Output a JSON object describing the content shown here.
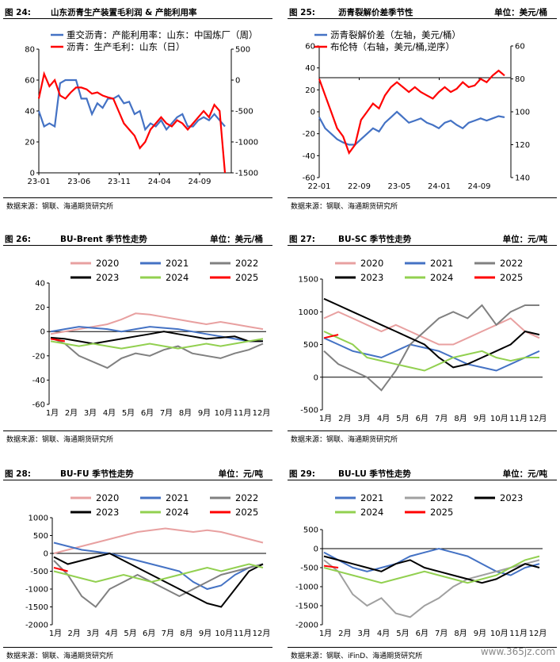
{
  "watermark": "www.365jz.com",
  "panels": [
    {
      "fig": "图 24:",
      "title": "山东沥青生产装置毛利润 & 产能利用率",
      "unit": "",
      "source": "数据来源：钢联、海通期货研究所"
    },
    {
      "fig": "图 25:",
      "title": "沥青裂解价差季节性",
      "unit": "单位：美元/桶",
      "source": "数据来源：钢联、海通期货研究所"
    },
    {
      "fig": "图 26:",
      "title": "BU-Brent 季节性走势",
      "unit": "单位：美元/桶",
      "source": "数据来源：钢联、海通期货研究所"
    },
    {
      "fig": "图 27:",
      "title": "BU-SC 季节性走势",
      "unit": "单位：元/吨",
      "source": "数据来源：钢联、海通期货研究所"
    },
    {
      "fig": "图 28:",
      "title": "BU-FU 季节性走势",
      "unit": "单位：元/吨",
      "source": "数据来源：钢联、海通期货研究所"
    },
    {
      "fig": "图 29:",
      "title": "BU-LU 季节性走势",
      "unit": "单位：元/吨",
      "source": "数据来源：钢联、iFinD、海通期货研究所"
    }
  ],
  "chart_data": [
    {
      "type": "line",
      "dual_axis": true,
      "x_tick_labels": [
        "23-01",
        "23-06",
        "23-11",
        "24-04",
        "24-09"
      ],
      "y_left_ticks": [
        0,
        20,
        40,
        60,
        80
      ],
      "y_right_ticks": [
        500,
        0,
        -500,
        -1000,
        -1500
      ],
      "series": [
        {
          "name": "重交沥青：产能利用率：山东：中国炼厂（周）",
          "axis": "left",
          "color": "#4472C4",
          "values": [
            40,
            30,
            32,
            30,
            58,
            60,
            60,
            60,
            48,
            48,
            38,
            45,
            42,
            48,
            48,
            50,
            45,
            46,
            38,
            40,
            28,
            32,
            30,
            34,
            28,
            32,
            36,
            38,
            30,
            30,
            34,
            36,
            34,
            38,
            34,
            30
          ]
        },
        {
          "name": "沥青：生产毛利：山东（日）",
          "axis": "right",
          "color": "#FF0000",
          "values": [
            -300,
            100,
            -100,
            0,
            -250,
            -300,
            -200,
            -120,
            -120,
            -150,
            -220,
            -200,
            -250,
            -280,
            -300,
            -500,
            -700,
            -800,
            -900,
            -1100,
            -1000,
            -800,
            -700,
            -600,
            -700,
            -750,
            -650,
            -700,
            -800,
            -700,
            -600,
            -500,
            -600,
            -400,
            -500,
            -1500
          ]
        }
      ]
    },
    {
      "type": "line",
      "dual_axis": true,
      "x_tick_labels": [
        "22-01",
        "22-09",
        "23-05",
        "24-01",
        "24-09"
      ],
      "y_left_ticks": [
        60,
        40,
        20,
        0,
        -20,
        -40,
        -60
      ],
      "y_right_ticks": [
        60,
        80,
        100,
        120,
        140
      ],
      "series": [
        {
          "name": "沥青裂解价差（左轴，美元/桶）",
          "axis": "left",
          "color": "#4472C4",
          "values": [
            -5,
            -15,
            -20,
            -25,
            -28,
            -30,
            -30,
            -25,
            -20,
            -15,
            -18,
            -10,
            -5,
            0,
            -5,
            -10,
            -8,
            -6,
            -10,
            -12,
            -15,
            -10,
            -8,
            -12,
            -15,
            -10,
            -8,
            -6,
            -8,
            -6,
            -4,
            -5
          ]
        },
        {
          "name": "布伦特（右轴，美元/桶,逆序）",
          "axis": "right",
          "color": "#FF0000",
          "values": [
            80,
            90,
            100,
            110,
            115,
            125,
            120,
            105,
            100,
            95,
            98,
            90,
            85,
            82,
            85,
            88,
            85,
            88,
            90,
            92,
            88,
            85,
            88,
            86,
            82,
            85,
            84,
            80,
            82,
            78,
            75,
            78
          ]
        }
      ]
    },
    {
      "type": "line",
      "x_tick_labels": [
        "1月",
        "2月",
        "3月",
        "4月",
        "5月",
        "6月",
        "7月",
        "8月",
        "9月",
        "10月",
        "11月",
        "12月"
      ],
      "y_ticks": [
        40,
        20,
        0,
        -20,
        -40,
        -60
      ],
      "ylim": [
        -60,
        40
      ],
      "series": [
        {
          "name": "2020",
          "color": "#E8A0A0",
          "values": [
            -2,
            0,
            2,
            4,
            6,
            10,
            15,
            14,
            12,
            10,
            8,
            6,
            8,
            6,
            4,
            2
          ]
        },
        {
          "name": "2021",
          "color": "#4472C4",
          "values": [
            0,
            2,
            4,
            3,
            2,
            0,
            2,
            4,
            3,
            2,
            0,
            -2,
            -4,
            -6,
            -8,
            -8
          ]
        },
        {
          "name": "2022",
          "color": "#808080",
          "values": [
            -5,
            -10,
            -20,
            -25,
            -30,
            -22,
            -18,
            -20,
            -15,
            -12,
            -18,
            -20,
            -22,
            -18,
            -15,
            -10
          ]
        },
        {
          "name": "2023",
          "color": "#000000",
          "values": [
            -5,
            -6,
            -8,
            -10,
            -8,
            -6,
            -4,
            -2,
            0,
            -2,
            -4,
            -6,
            -5,
            -4,
            -8,
            -8
          ]
        },
        {
          "name": "2024",
          "color": "#92D050",
          "values": [
            -8,
            -10,
            -12,
            -10,
            -12,
            -14,
            -12,
            -10,
            -12,
            -14,
            -12,
            -10,
            -12,
            -10,
            -8,
            -6
          ]
        },
        {
          "name": "2025",
          "color": "#FF0000",
          "values": [
            -6,
            -8,
            null,
            null,
            null,
            null,
            null,
            null,
            null,
            null,
            null,
            null,
            null,
            null,
            null,
            null
          ]
        }
      ]
    },
    {
      "type": "line",
      "x_tick_labels": [
        "1月",
        "2月",
        "3月",
        "4月",
        "5月",
        "6月",
        "7月",
        "8月",
        "9月",
        "10月",
        "11月",
        "12月"
      ],
      "y_ticks": [
        1500,
        1000,
        500,
        0,
        -500
      ],
      "ylim": [
        -500,
        1500
      ],
      "series": [
        {
          "name": "2020",
          "color": "#E8A0A0",
          "values": [
            900,
            1000,
            900,
            800,
            700,
            800,
            700,
            600,
            500,
            500,
            600,
            700,
            800,
            900,
            700,
            600
          ]
        },
        {
          "name": "2021",
          "color": "#4472C4",
          "values": [
            600,
            500,
            400,
            350,
            300,
            400,
            500,
            450,
            400,
            300,
            200,
            150,
            100,
            200,
            300,
            400
          ]
        },
        {
          "name": "2022",
          "color": "#808080",
          "values": [
            400,
            200,
            100,
            0,
            -200,
            100,
            500,
            700,
            900,
            1000,
            900,
            1100,
            800,
            1000,
            1100,
            1100
          ]
        },
        {
          "name": "2023",
          "color": "#000000",
          "values": [
            1200,
            1100,
            1000,
            900,
            800,
            700,
            600,
            500,
            300,
            150,
            200,
            300,
            400,
            500,
            700,
            650
          ]
        },
        {
          "name": "2024",
          "color": "#92D050",
          "values": [
            700,
            600,
            500,
            300,
            250,
            200,
            150,
            100,
            200,
            300,
            350,
            400,
            300,
            250,
            300,
            300
          ]
        },
        {
          "name": "2025",
          "color": "#FF0000",
          "values": [
            600,
            650,
            null,
            null,
            null,
            null,
            null,
            null,
            null,
            null,
            null,
            null,
            null,
            null,
            null,
            null
          ]
        }
      ]
    },
    {
      "type": "line",
      "x_tick_labels": [
        "1月",
        "2月",
        "3月",
        "4月",
        "5月",
        "6月",
        "7月",
        "8月",
        "9月",
        "10月",
        "11月",
        "12月"
      ],
      "y_ticks": [
        1000,
        500,
        0,
        -500,
        -1000,
        -1500,
        -2000
      ],
      "ylim": [
        -2000,
        1000
      ],
      "series": [
        {
          "name": "2020",
          "color": "#E8A0A0",
          "values": [
            0,
            100,
            200,
            300,
            400,
            500,
            600,
            650,
            700,
            650,
            600,
            650,
            600,
            500,
            400,
            300
          ]
        },
        {
          "name": "2021",
          "color": "#4472C4",
          "values": [
            300,
            200,
            100,
            50,
            0,
            -100,
            -200,
            -300,
            -400,
            -500,
            -800,
            -1000,
            -900,
            -600,
            -400,
            -300
          ]
        },
        {
          "name": "2022",
          "color": "#808080",
          "values": [
            -200,
            -600,
            -1200,
            -1500,
            -1000,
            -800,
            -600,
            -800,
            -1000,
            -1200,
            -1000,
            -800,
            -600,
            -500,
            -400,
            -300
          ]
        },
        {
          "name": "2023",
          "color": "#000000",
          "values": [
            -100,
            -300,
            -200,
            -100,
            0,
            -200,
            -400,
            -600,
            -800,
            -1000,
            -1200,
            -1400,
            -1500,
            -1000,
            -500,
            -300
          ]
        },
        {
          "name": "2024",
          "color": "#92D050",
          "values": [
            -500,
            -600,
            -700,
            -800,
            -700,
            -600,
            -700,
            -800,
            -700,
            -600,
            -500,
            -400,
            -500,
            -400,
            -300,
            -400
          ]
        },
        {
          "name": "2025",
          "color": "#FF0000",
          "values": [
            -400,
            -500,
            null,
            null,
            null,
            null,
            null,
            null,
            null,
            null,
            null,
            null,
            null,
            null,
            null,
            null
          ]
        }
      ]
    },
    {
      "type": "line",
      "x_tick_labels": [
        "1月",
        "2月",
        "3月",
        "4月",
        "5月",
        "6月",
        "7月",
        "8月",
        "9月",
        "10月",
        "11月",
        "12月"
      ],
      "y_ticks": [
        500,
        0,
        -500,
        -1000,
        -1500,
        -2000
      ],
      "ylim": [
        -2000,
        500
      ],
      "series": [
        {
          "name": "2021",
          "color": "#4472C4",
          "values": [
            -100,
            -300,
            -500,
            -600,
            -500,
            -400,
            -200,
            -100,
            0,
            -100,
            -200,
            -400,
            -600,
            -700,
            -500,
            -400
          ]
        },
        {
          "name": "2022",
          "color": "#A0A0A0",
          "values": [
            -300,
            -600,
            -1200,
            -1500,
            -1300,
            -1700,
            -1800,
            -1500,
            -1300,
            -1000,
            -800,
            -700,
            -600,
            -500,
            -400,
            -300
          ]
        },
        {
          "name": "2023",
          "color": "#000000",
          "values": [
            -200,
            -300,
            -400,
            -500,
            -600,
            -400,
            -300,
            -500,
            -600,
            -700,
            -800,
            -900,
            -800,
            -600,
            -400,
            -500
          ]
        },
        {
          "name": "2024",
          "color": "#92D050",
          "values": [
            -500,
            -600,
            -700,
            -800,
            -900,
            -800,
            -700,
            -600,
            -700,
            -800,
            -900,
            -800,
            -700,
            -500,
            -300,
            -200
          ]
        },
        {
          "name": "2025",
          "color": "#FF0000",
          "values": [
            -450,
            -500,
            null,
            null,
            null,
            null,
            null,
            null,
            null,
            null,
            null,
            null,
            null,
            null,
            null,
            null
          ]
        }
      ]
    }
  ]
}
